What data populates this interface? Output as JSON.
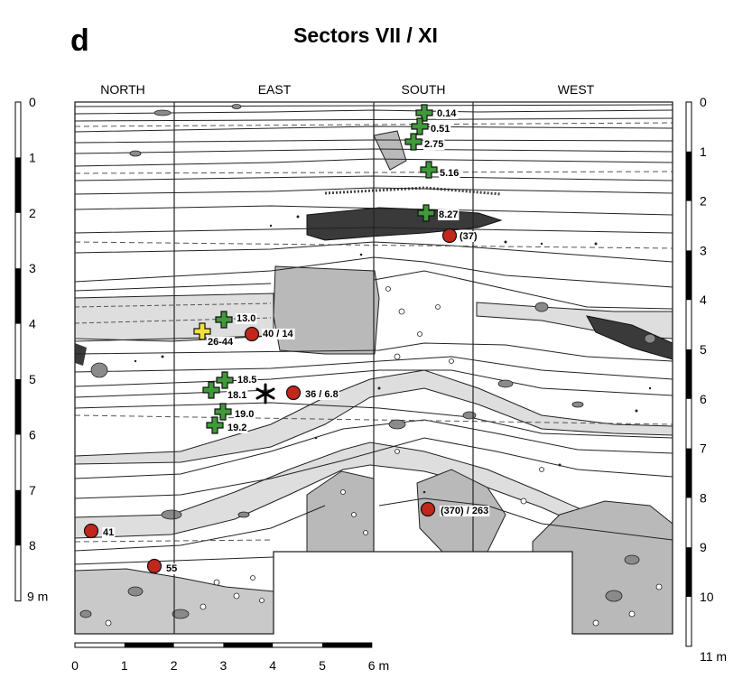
{
  "panel_letter": "d",
  "title": "Sectors VII / XI",
  "directions": [
    "NORTH",
    "EAST",
    "SOUTH",
    "WEST"
  ],
  "left_scale": {
    "ticks": [
      "0",
      "1",
      "2",
      "3",
      "4",
      "5",
      "6",
      "7",
      "8"
    ],
    "end_label": "9 m"
  },
  "right_scale": {
    "ticks": [
      "0",
      "1",
      "2",
      "3",
      "4",
      "5",
      "6",
      "7",
      "8",
      "9",
      "10"
    ],
    "end_label": "11 m"
  },
  "bottom_scale": {
    "ticks": [
      "0",
      "1",
      "2",
      "3",
      "4",
      "5"
    ],
    "end_label": "6 m"
  },
  "green_markers": [
    {
      "label": "0.14"
    },
    {
      "label": "0.51"
    },
    {
      "label": "2.75"
    },
    {
      "label": "5.16"
    },
    {
      "label": "8.27"
    },
    {
      "label": "13.0"
    },
    {
      "label": "18.5"
    },
    {
      "label": "18.1"
    },
    {
      "label": "19.0"
    },
    {
      "label": "19.2"
    }
  ],
  "yellow_markers": [
    {
      "label": "26-44"
    }
  ],
  "red_markers": [
    {
      "label": "(37)"
    },
    {
      "label": "40 / 14"
    },
    {
      "label": "36 / 6.8"
    },
    {
      "label": "(370) / 263"
    },
    {
      "label": "41"
    },
    {
      "label": "55"
    }
  ],
  "colors": {
    "green": "#3f9a3a",
    "yellow": "#f2e23c",
    "red": "#c2271c",
    "layer_light": "#dedede",
    "stone": "#b9b9b9",
    "dark": "#3a3a3a"
  }
}
